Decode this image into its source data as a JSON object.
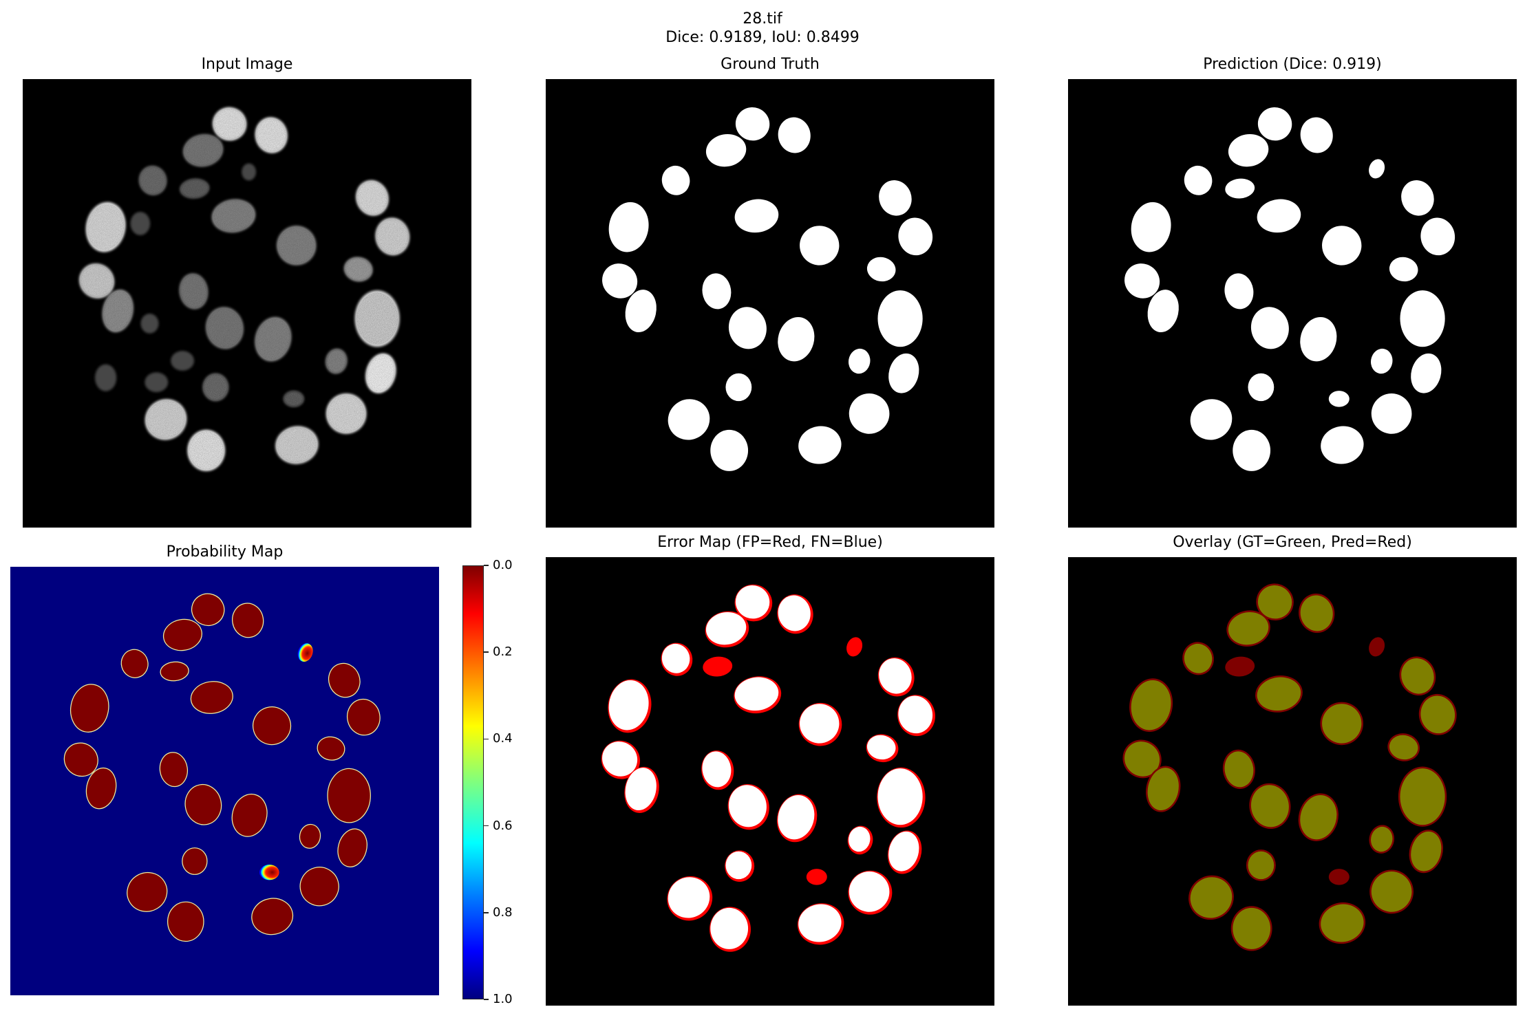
{
  "figure": {
    "suptitle_line1": "28.tif",
    "suptitle_line2": "Dice: 0.9189, IoU: 0.8499"
  },
  "panels": {
    "input": {
      "title": "Input Image"
    },
    "gt": {
      "title": "Ground Truth"
    },
    "pred": {
      "title": "Prediction (Dice: 0.919)"
    },
    "prob": {
      "title": "Probability Map"
    },
    "error": {
      "title": "Error Map (FP=Red, FN=Blue)"
    },
    "overlay": {
      "title": "Overlay (GT=Green, Pred=Red)"
    }
  },
  "colorbar": {
    "ticks": [
      "1.0",
      "0.8",
      "0.6",
      "0.4",
      "0.2",
      "0.0"
    ],
    "colormap": "jet",
    "range": [
      0.0,
      1.0
    ]
  },
  "colors": {
    "background": "#000000",
    "mask": "#ffffff",
    "prob_low": "#00007f",
    "prob_high": "#7f0000",
    "fp": "#ff0000",
    "fn": "#0000ff",
    "overlay_both": "#7f7f00",
    "overlay_pred_only": "#7f0000",
    "overlay_gt_only": "#007f00"
  },
  "chart_data": {
    "type": "heatmap",
    "title": "28.tif — Dice: 0.9189, IoU: 0.8499",
    "metrics": {
      "dice": 0.9189,
      "iou": 0.8499,
      "prediction_dice_rounded": 0.919
    },
    "subplots": [
      "Input Image",
      "Ground Truth",
      "Prediction (Dice: 0.919)",
      "Probability Map",
      "Error Map (FP=Red, FN=Blue)",
      "Overlay (GT=Green, Pred=Red)"
    ],
    "colorbar": {
      "min": 0.0,
      "max": 1.0,
      "ticks": [
        0.0,
        0.2,
        0.4,
        0.6,
        0.8,
        1.0
      ]
    },
    "nuclei_note": "normalized coords [cx, cy, rx, ry, rotation_deg, gt, pred]",
    "nuclei": [
      [
        0.461,
        0.1,
        0.038,
        0.037,
        20,
        1,
        1
      ],
      [
        0.554,
        0.125,
        0.036,
        0.04,
        -10,
        1,
        1
      ],
      [
        0.402,
        0.159,
        0.045,
        0.036,
        -10,
        1,
        1
      ],
      [
        0.29,
        0.226,
        0.031,
        0.033,
        -15,
        1,
        1
      ],
      [
        0.383,
        0.244,
        0.033,
        0.022,
        -5,
        0,
        1
      ],
      [
        0.688,
        0.2,
        0.017,
        0.022,
        20,
        0,
        1
      ],
      [
        0.779,
        0.265,
        0.036,
        0.04,
        -20,
        1,
        1
      ],
      [
        0.47,
        0.305,
        0.049,
        0.037,
        -8,
        1,
        1
      ],
      [
        0.185,
        0.33,
        0.044,
        0.056,
        10,
        1,
        1
      ],
      [
        0.61,
        0.371,
        0.044,
        0.044,
        30,
        1,
        1
      ],
      [
        0.824,
        0.351,
        0.038,
        0.042,
        -10,
        1,
        1
      ],
      [
        0.748,
        0.424,
        0.032,
        0.027,
        10,
        1,
        1
      ],
      [
        0.165,
        0.45,
        0.038,
        0.04,
        -50,
        1,
        1
      ],
      [
        0.212,
        0.517,
        0.034,
        0.048,
        12,
        1,
        1
      ],
      [
        0.381,
        0.473,
        0.032,
        0.04,
        -8,
        1,
        1
      ],
      [
        0.45,
        0.555,
        0.042,
        0.047,
        -10,
        1,
        1
      ],
      [
        0.558,
        0.58,
        0.04,
        0.05,
        15,
        1,
        1
      ],
      [
        0.79,
        0.534,
        0.05,
        0.063,
        0,
        1,
        1
      ],
      [
        0.699,
        0.629,
        0.024,
        0.028,
        10,
        1,
        1
      ],
      [
        0.798,
        0.656,
        0.033,
        0.045,
        15,
        1,
        1
      ],
      [
        0.43,
        0.687,
        0.029,
        0.031,
        0,
        1,
        1
      ],
      [
        0.604,
        0.713,
        0.023,
        0.018,
        0,
        0,
        1
      ],
      [
        0.721,
        0.746,
        0.045,
        0.045,
        30,
        1,
        1
      ],
      [
        0.319,
        0.759,
        0.047,
        0.045,
        -30,
        1,
        1
      ],
      [
        0.409,
        0.828,
        0.042,
        0.046,
        0,
        1,
        1
      ],
      [
        0.611,
        0.816,
        0.048,
        0.042,
        -10,
        1,
        1
      ]
    ],
    "input_intensity": [
      0.95,
      0.95,
      0.5,
      0.45,
      0.4,
      0.35,
      0.92,
      0.55,
      0.9,
      0.55,
      0.88,
      0.65,
      0.85,
      0.6,
      0.5,
      0.5,
      0.55,
      0.85,
      0.55,
      1.0,
      0.45,
      0.4,
      0.9,
      0.88,
      0.95,
      0.88
    ],
    "input_faint_spots": [
      [
        0.283,
        0.545,
        0.02,
        0.022
      ],
      [
        0.185,
        0.666,
        0.024,
        0.03
      ],
      [
        0.356,
        0.628,
        0.026,
        0.022
      ],
      [
        0.298,
        0.676,
        0.026,
        0.022
      ],
      [
        0.262,
        0.322,
        0.022,
        0.026
      ],
      [
        0.504,
        0.207,
        0.016,
        0.019
      ]
    ],
    "uncertain_nuclei": [
      5,
      21
    ]
  }
}
